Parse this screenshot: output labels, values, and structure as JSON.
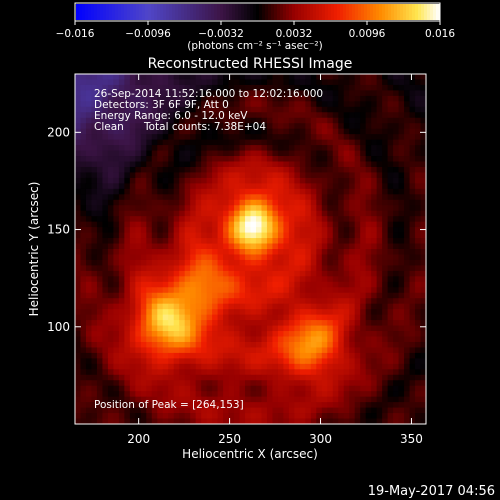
{
  "colorbar": {
    "tick_labels": [
      "−0.016",
      "−0.0096",
      "−0.0032",
      "0.0032",
      "0.0096",
      "0.016"
    ],
    "tick_values": [
      -0.016,
      -0.0096,
      -0.0032,
      0.0032,
      0.0096,
      0.016
    ],
    "range": [
      -0.016,
      0.016
    ],
    "unit_label": "(photons cm⁻² s⁻¹ asec⁻²)",
    "colors": [
      "#0000ff",
      "#ffffff",
      "#ff0000",
      "#ffa500",
      "#ffff80",
      "#ffffff"
    ]
  },
  "chart_data": {
    "type": "heatmap",
    "title": "Reconstructed RHESSI Image",
    "xlabel": "Heliocentric X (arcsec)",
    "ylabel": "Heliocentric Y (arcsec)",
    "xlim": [
      165,
      358
    ],
    "ylim": [
      50,
      230
    ],
    "x_ticks": [
      200,
      250,
      300,
      350
    ],
    "y_ticks": [
      100,
      150,
      200
    ],
    "annotations": {
      "time_range": "26-Sep-2014 11:52:16.000 to 12:02:16.000",
      "detectors": "Detectors: 3F 6F 9F, Att 0",
      "energy_range": "Energy Range: 6.0 - 12.0 keV",
      "method": "Clean",
      "total_counts": "Total counts: 7.38E+04",
      "peak": "Position of Peak = [264,153]"
    },
    "peak_position": [
      264,
      153
    ],
    "sources": [
      {
        "x": 264,
        "y": 153,
        "amplitude": 0.0115
      },
      {
        "x": 214,
        "y": 100,
        "amplitude": 0.0085
      },
      {
        "x": 296,
        "y": 90,
        "amplitude": 0.0072
      },
      {
        "x": 232,
        "y": 118,
        "amplitude": 0.0055
      }
    ],
    "grid": false
  },
  "footer": {
    "date": "19-May-2017 04:56"
  }
}
